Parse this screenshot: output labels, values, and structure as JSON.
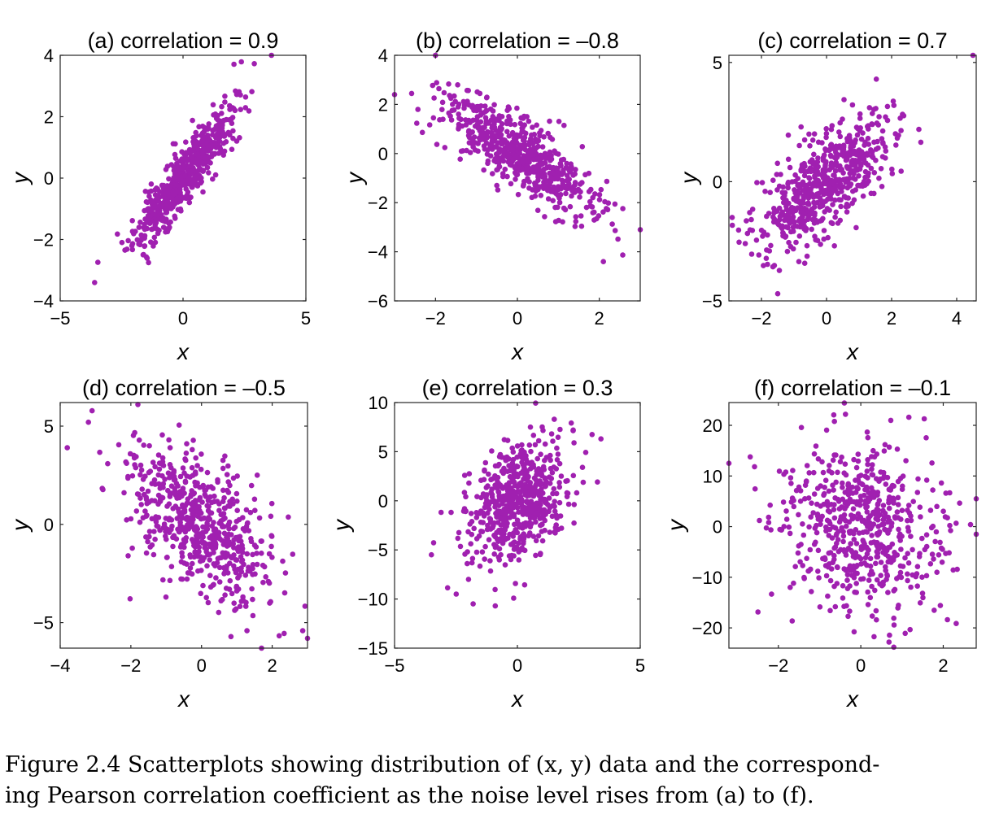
{
  "figure": {
    "marker_color": "#a020b0",
    "caption_line1": "Figure 2.4 Scatterplots showing distribution of (x, y) data and the correspond-",
    "caption_line2": "ing Pearson correlation coefficient as the noise level rises from (a) to (f)."
  },
  "chart_data": [
    {
      "type": "scatter",
      "title": "(a)  correlation = 0.9",
      "xlabel": "x",
      "ylabel": "y",
      "xlim": [
        -5,
        5
      ],
      "ylim": [
        -4,
        4
      ],
      "xticks": [
        -5,
        0,
        5
      ],
      "yticks": [
        -4,
        -2,
        0,
        2,
        4
      ],
      "x_sd": 1,
      "correlation": 0.9,
      "y_sd": 1.1,
      "n": 600,
      "seed": 11,
      "extremes": [
        [
          3.6,
          4.0
        ],
        [
          -3.6,
          -3.4
        ]
      ]
    },
    {
      "type": "scatter",
      "title": "(b)  correlation = –0.8",
      "xlabel": "x",
      "ylabel": "y",
      "xlim": [
        -3,
        3
      ],
      "ylim": [
        -6,
        4
      ],
      "xticks": [
        -2,
        0,
        2
      ],
      "yticks": [
        -6,
        -4,
        -2,
        0,
        2,
        4
      ],
      "x_sd": 0.9,
      "correlation": -0.8,
      "y_sd": 1.2,
      "n": 600,
      "seed": 23,
      "extremes": [
        [
          -2.0,
          4.0
        ],
        [
          -3.0,
          2.4
        ],
        [
          3.0,
          -3.1
        ],
        [
          2.1,
          -4.4
        ]
      ]
    },
    {
      "type": "scatter",
      "title": "(c)  correlation = 0.7",
      "xlabel": "x",
      "ylabel": "y",
      "xlim": [
        -3,
        4.6
      ],
      "ylim": [
        -5,
        5.3
      ],
      "xticks": [
        -2,
        0,
        2,
        4
      ],
      "yticks": [
        -5,
        0,
        5
      ],
      "x_sd": 1,
      "correlation": 0.7,
      "y_sd": 1.4,
      "n": 600,
      "seed": 37,
      "extremes": [
        [
          4.5,
          5.3
        ],
        [
          -1.5,
          -4.7
        ],
        [
          -2.9,
          -1.5
        ]
      ]
    },
    {
      "type": "scatter",
      "title": "(d)  correlation = –0.5",
      "xlabel": "x",
      "ylabel": "y",
      "xlim": [
        -4,
        3
      ],
      "ylim": [
        -6.3,
        6.2
      ],
      "xticks": [
        -4,
        -2,
        0,
        2
      ],
      "yticks": [
        -5,
        0,
        5
      ],
      "x_sd": 1,
      "correlation": -0.5,
      "y_sd": 2.0,
      "n": 600,
      "seed": 41,
      "extremes": [
        [
          -3.8,
          3.9
        ],
        [
          -1.8,
          6.1
        ],
        [
          3.0,
          -5.8
        ],
        [
          1.7,
          -6.3
        ],
        [
          -3.2,
          5.2
        ]
      ]
    },
    {
      "type": "scatter",
      "title": "(e)  correlation = 0.3",
      "xlabel": "x",
      "ylabel": "y",
      "xlim": [
        -5,
        5
      ],
      "ylim": [
        -15,
        10
      ],
      "xticks": [
        -5,
        0,
        5
      ],
      "yticks": [
        -15,
        -10,
        -5,
        0,
        5,
        10
      ],
      "x_sd": 1,
      "correlation": 0.3,
      "y_sd": 3.0,
      "n": 600,
      "seed": 53,
      "extremes": [
        [
          3.4,
          6.3
        ],
        [
          -3.5,
          -5.5
        ],
        [
          -1.8,
          -10.5
        ],
        [
          -0.9,
          -10.7
        ]
      ]
    },
    {
      "type": "scatter",
      "title": "(f)  correlation = –0.1",
      "xlabel": "x",
      "ylabel": "y",
      "xlim": [
        -3.2,
        2.8
      ],
      "ylim": [
        -24,
        24.5
      ],
      "xticks": [
        -2,
        0,
        2
      ],
      "yticks": [
        -20,
        -10,
        0,
        10,
        20
      ],
      "x_sd": 1,
      "correlation": -0.1,
      "y_sd": 8.0,
      "n": 600,
      "seed": 67,
      "extremes": [
        [
          -0.4,
          24.4
        ],
        [
          -3.2,
          12.5
        ],
        [
          2.8,
          5.5
        ],
        [
          0.8,
          -23.8
        ],
        [
          2.8,
          -1.5
        ]
      ]
    }
  ]
}
